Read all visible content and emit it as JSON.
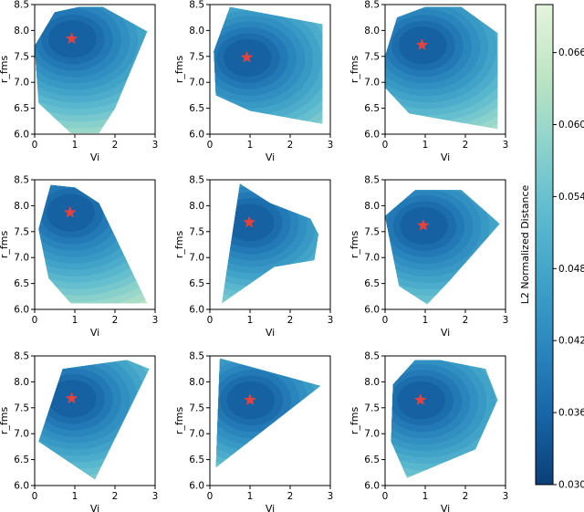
{
  "chart_data": {
    "type": "contour",
    "layout": "3x3 grid",
    "xlabel": "Vi",
    "ylabel": "r_fms",
    "xlim": [
      0,
      3
    ],
    "ylim": [
      6.0,
      8.5
    ],
    "xticks": [
      "0",
      "1",
      "2",
      "3"
    ],
    "yticks": [
      "6.0",
      "6.5",
      "7.0",
      "7.5",
      "8.0",
      "8.5"
    ],
    "marker": "star",
    "marker_color": "#e8413c",
    "colormap": [
      "#0b3f77",
      "#1764a6",
      "#2a85bd",
      "#3fa1c8",
      "#5fbccf",
      "#8ed3cc",
      "#bde5c3",
      "#e6f4dd"
    ],
    "colorbar": {
      "label": "L2 Normalized Distance",
      "ticks": [
        "0.030",
        "0.036",
        "0.042",
        "0.048",
        "0.054",
        "0.060",
        "0.066"
      ],
      "range": [
        0.03,
        0.07
      ]
    },
    "panels": [
      {
        "star": [
          0.92,
          7.84
        ],
        "hull": [
          [
            0.0,
            7.7
          ],
          [
            0.5,
            8.35
          ],
          [
            1.1,
            8.45
          ],
          [
            1.7,
            8.45
          ],
          [
            2.8,
            7.98
          ],
          [
            2.0,
            6.5
          ],
          [
            1.6,
            6.02
          ],
          [
            0.9,
            6.02
          ],
          [
            0.1,
            6.6
          ]
        ]
      },
      {
        "star": [
          0.92,
          7.48
        ],
        "hull": [
          [
            0.1,
            7.6
          ],
          [
            0.5,
            8.45
          ],
          [
            2.8,
            8.12
          ],
          [
            2.8,
            6.2
          ],
          [
            1.0,
            6.45
          ],
          [
            0.15,
            6.75
          ]
        ]
      },
      {
        "star": [
          0.92,
          7.72
        ],
        "hull": [
          [
            0.0,
            7.5
          ],
          [
            0.3,
            8.25
          ],
          [
            1.0,
            8.45
          ],
          [
            1.9,
            8.45
          ],
          [
            2.8,
            7.95
          ],
          [
            2.8,
            6.1
          ],
          [
            0.6,
            6.4
          ],
          [
            0.0,
            6.9
          ]
        ]
      },
      {
        "star": [
          0.88,
          7.87
        ],
        "hull": [
          [
            0.1,
            7.55
          ],
          [
            0.4,
            8.4
          ],
          [
            1.0,
            8.35
          ],
          [
            1.6,
            8.05
          ],
          [
            2.8,
            6.12
          ],
          [
            0.9,
            6.12
          ],
          [
            0.35,
            6.6
          ]
        ]
      },
      {
        "star": [
          0.98,
          7.68
        ],
        "hull": [
          [
            0.3,
            6.12
          ],
          [
            0.75,
            8.42
          ],
          [
            1.5,
            8.05
          ],
          [
            2.5,
            7.75
          ],
          [
            2.7,
            7.45
          ],
          [
            2.6,
            6.95
          ],
          [
            1.6,
            6.82
          ]
        ]
      },
      {
        "star": [
          0.95,
          7.62
        ],
        "hull": [
          [
            0.0,
            7.8
          ],
          [
            0.75,
            8.3
          ],
          [
            1.9,
            8.3
          ],
          [
            2.85,
            7.65
          ],
          [
            1.6,
            6.55
          ],
          [
            1.05,
            6.1
          ],
          [
            0.35,
            6.45
          ]
        ]
      },
      {
        "star": [
          0.92,
          7.68
        ],
        "hull": [
          [
            0.1,
            6.85
          ],
          [
            0.7,
            8.25
          ],
          [
            2.3,
            8.42
          ],
          [
            2.85,
            8.25
          ],
          [
            1.5,
            6.12
          ]
        ]
      },
      {
        "star": [
          1.0,
          7.65
        ],
        "hull": [
          [
            0.25,
            8.45
          ],
          [
            2.75,
            7.92
          ],
          [
            0.15,
            6.35
          ]
        ]
      },
      {
        "star": [
          0.88,
          7.65
        ],
        "hull": [
          [
            0.2,
            7.95
          ],
          [
            0.75,
            8.42
          ],
          [
            1.35,
            8.42
          ],
          [
            2.5,
            8.25
          ],
          [
            2.8,
            7.65
          ],
          [
            2.25,
            6.7
          ],
          [
            0.55,
            6.15
          ],
          [
            0.15,
            6.85
          ]
        ]
      }
    ]
  }
}
